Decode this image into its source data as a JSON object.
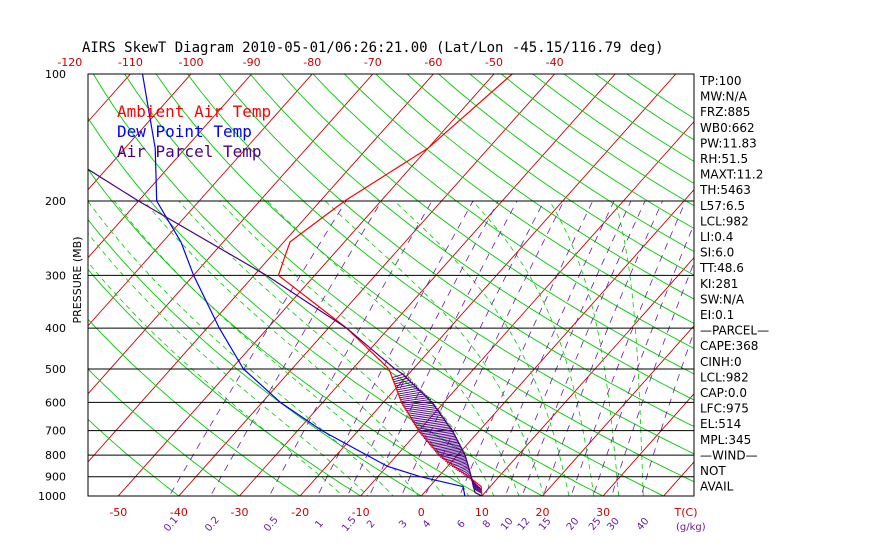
{
  "title": "AIRS SkewT Diagram 2010-05-01/06:26:21.00 (Lat/Lon -45.15/116.79 deg)",
  "colors": {
    "temperature": "#ff0000",
    "dewpoint": "#0000ff",
    "parcel": "#4b0082",
    "isotherm": "#cc0000",
    "dry_adiabat": "#00cc00",
    "moist_adiabat": "#00cc00",
    "mixing_ratio": "#6b1aa5",
    "hatch": "#4b0082"
  },
  "legend": [
    {
      "label": "Ambient Air Temp",
      "color": "#ff0000"
    },
    {
      "label": "Dew Point Temp",
      "color": "#0000ff"
    },
    {
      "label": "Air Parcel Temp",
      "color": "#4b0082"
    }
  ],
  "indices": [
    "TP:100",
    "MW:N/A",
    "FRZ:885",
    "WB0:662",
    "PW:11.83",
    "RH:51.5",
    "MAXT:11.2",
    "TH:5463",
    "L57:6.5",
    "LCL:982",
    "LI:0.4",
    "SI:6.0",
    "TT:48.6",
    "KI:281",
    "SW:N/A",
    "EI:0.1",
    "—PARCEL—",
    "CAPE:368",
    "CINH:0",
    "LCL:982",
    "CAP:0.0",
    "LFC:975",
    "EL:514",
    "MPL:345",
    "—WIND—",
    "NOT",
    "AVAIL"
  ],
  "chart_data": {
    "type": "line",
    "title": "AIRS SkewT Diagram 2010-05-01/06:26:21.00 (Lat/Lon -45.15/116.79 deg)",
    "ylabel": "PRESSURE (MB)",
    "xlabel": "T(C)",
    "y_scale": "log",
    "ylim": [
      1000,
      100
    ],
    "pressure_ticks": [
      100,
      200,
      300,
      400,
      500,
      600,
      700,
      800,
      900,
      1000
    ],
    "bottom_temp_ticks": [
      -50,
      -40,
      -30,
      -20,
      -10,
      0,
      10,
      20,
      30
    ],
    "bottom_temp_labels": [
      "-50",
      "-40",
      "-30",
      "-20",
      "-10",
      "0",
      "10",
      "20",
      "30"
    ],
    "top_temp_ticks": [
      -120,
      -110,
      -100,
      -90,
      -80,
      -70,
      -60,
      -50,
      -40
    ],
    "top_temp_labels": [
      "-120",
      "-110",
      "-100",
      "-90",
      "-80",
      "-70",
      "-60",
      "-50",
      "-40"
    ],
    "mixing_ratio_lines": [
      0.1,
      0.2,
      0.5,
      1,
      1.5,
      2,
      3,
      4,
      6,
      8,
      10,
      12,
      15,
      20,
      25,
      30,
      40
    ],
    "mixing_ratio_labels": [
      "0.1",
      "0.2",
      "0.5",
      "1",
      "1.5",
      "2",
      "3",
      "4",
      "6",
      "8",
      "10",
      "12",
      "15",
      "20",
      "25",
      "30",
      "40"
    ],
    "mixing_ratio_unit": "(g/kg)",
    "grid": true,
    "legend_position": "top-left",
    "series": [
      {
        "name": "Ambient Air Temp",
        "pressure": [
          1000,
          950,
          900,
          850,
          800,
          700,
          600,
          500,
          400,
          300,
          250,
          200,
          150,
          100
        ],
        "temperature": [
          10,
          8.5,
          5,
          1,
          -3,
          -10,
          -17,
          -24,
          -37,
          -56,
          -59,
          -56,
          -50,
          -47
        ]
      },
      {
        "name": "Dew Point Temp",
        "pressure": [
          1000,
          950,
          900,
          850,
          800,
          700,
          600,
          500,
          400,
          300,
          250,
          200,
          150,
          100
        ],
        "temperature": [
          7.2,
          5.5,
          -3,
          -10,
          -15,
          -26,
          -37,
          -48,
          -58,
          -70,
          -77,
          -87,
          -95,
          -108
        ]
      },
      {
        "name": "Air Parcel Temp",
        "pressure": [
          1000,
          982,
          950,
          900,
          850,
          800,
          700,
          600,
          514,
          500,
          400,
          300,
          200,
          100
        ],
        "temperature": [
          10,
          8.4,
          7.2,
          5.4,
          3.4,
          1.2,
          -4.5,
          -12,
          -21,
          -23,
          -37,
          -58,
          -90,
          -142
        ]
      }
    ]
  }
}
